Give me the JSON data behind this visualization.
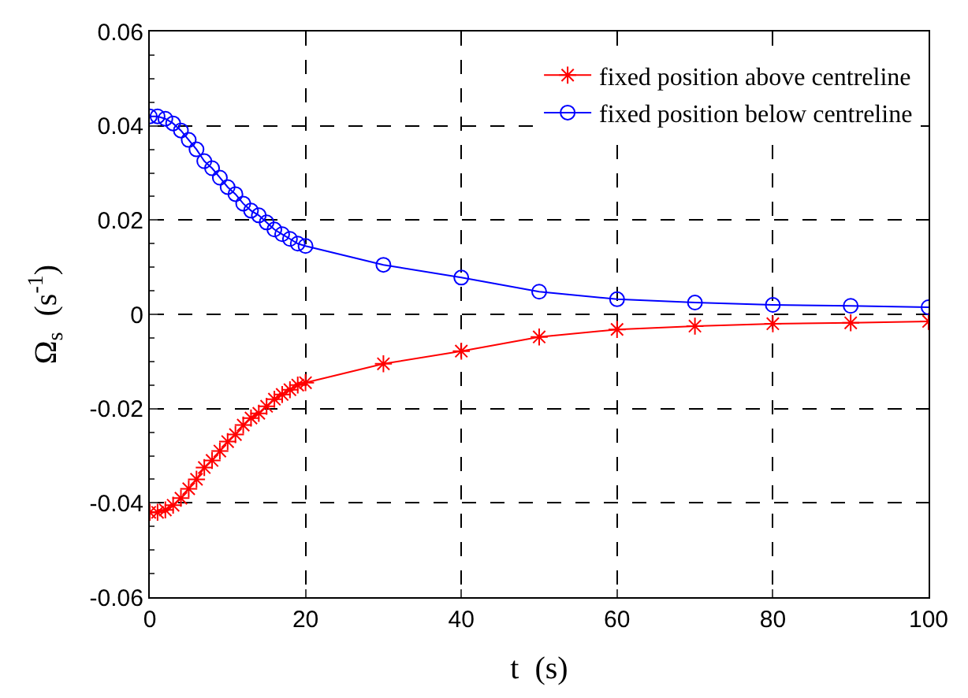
{
  "chart_data": {
    "type": "line",
    "xlabel": "t  (s)",
    "ylabel": "Ω$_{s}$  (s$^{-1}$)",
    "x": [
      0,
      1,
      2,
      3,
      4,
      5,
      6,
      7,
      8,
      9,
      10,
      11,
      12,
      13,
      14,
      15,
      16,
      17,
      18,
      19,
      20,
      30,
      40,
      50,
      60,
      70,
      80,
      90,
      100
    ],
    "series": [
      {
        "name": "fixed position above centreline",
        "color": "#ff0000",
        "marker": "cross",
        "values": [
          -0.042,
          -0.042,
          -0.0415,
          -0.0405,
          -0.039,
          -0.037,
          -0.035,
          -0.0325,
          -0.031,
          -0.029,
          -0.027,
          -0.0255,
          -0.0235,
          -0.022,
          -0.021,
          -0.0195,
          -0.018,
          -0.017,
          -0.016,
          -0.015,
          -0.0145,
          -0.0105,
          -0.0078,
          -0.0048,
          -0.0032,
          -0.0025,
          -0.002,
          -0.0018,
          -0.0015
        ]
      },
      {
        "name": "fixed position below centreline",
        "color": "#0000ff",
        "marker": "circle",
        "values": [
          0.042,
          0.042,
          0.0415,
          0.0405,
          0.039,
          0.037,
          0.035,
          0.0325,
          0.031,
          0.029,
          0.027,
          0.0255,
          0.0235,
          0.022,
          0.021,
          0.0195,
          0.018,
          0.017,
          0.016,
          0.015,
          0.0145,
          0.0105,
          0.0078,
          0.0048,
          0.0032,
          0.0025,
          0.002,
          0.0018,
          0.0015
        ]
      }
    ],
    "xlim": [
      0,
      100
    ],
    "xticks": [
      0,
      20,
      40,
      60,
      80,
      100
    ],
    "ylim": [
      -0.06,
      0.06
    ],
    "yticks": [
      {
        "value": -0.06,
        "label": "-0.06"
      },
      {
        "value": -0.04,
        "label": "-0.04"
      },
      {
        "value": -0.02,
        "label": "-0.02"
      },
      0,
      {
        "value": 0.02,
        "label": "0.02"
      },
      {
        "value": 0.04,
        "label": "0.04"
      },
      {
        "value": 0.06,
        "label": "0.06"
      }
    ],
    "grid": true,
    "legend": "top right",
    "line_style": "solid"
  }
}
